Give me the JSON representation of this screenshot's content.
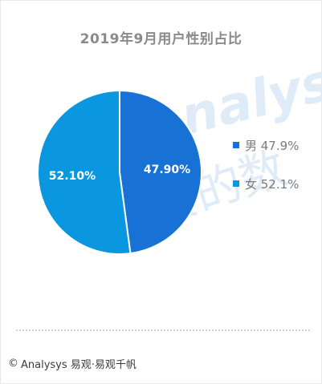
{
  "chart_data": {
    "type": "pie",
    "title": "2019年9月用户性别占比",
    "slices": [
      {
        "name": "男",
        "value": 47.9,
        "data_label": "47.90%",
        "legend_label": "男 47.9%",
        "color": "#1872d5"
      },
      {
        "name": "女",
        "value": 52.1,
        "data_label": "52.10%",
        "legend_label": "女 52.1%",
        "color": "#0b96e0"
      }
    ],
    "legend_position": "right",
    "start_angle": "12 o'clock, clockwise",
    "slice_separator_color": "#ffffff"
  },
  "watermark": {
    "text": "nalysys",
    "cn_text": "你要的数",
    "color": "#dcebf8"
  },
  "footer": {
    "copyright_symbol": "©",
    "text": "Analysys 易观·易观千帆"
  }
}
